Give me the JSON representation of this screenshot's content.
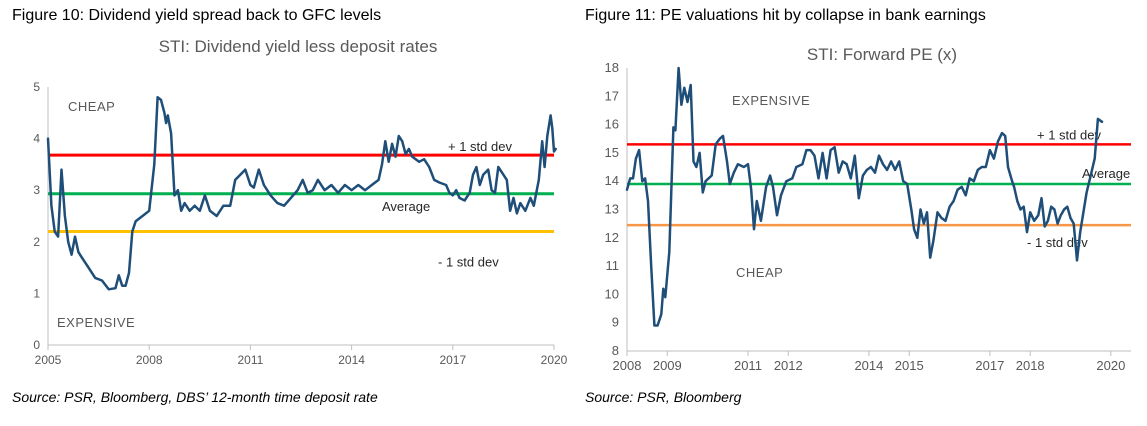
{
  "charts": [
    {
      "figure_title": "Figure 10: Dividend yield spread back to GFC levels",
      "source": "Source: PSR, Bloomberg, DBS’ 12-month time deposit rate"
    },
    {
      "figure_title": "Figure 11: PE valuations hit by collapse in bank earnings",
      "source": "Source: PSR, Bloomberg"
    }
  ],
  "colors": {
    "series": "#1f4e79",
    "upper_band_left": "#ff0000",
    "average": "#00b050",
    "lower_band_left": "#ffc000",
    "upper_band_right": "#ff0000",
    "lower_band_right": "#f79646",
    "text_gray": "#595959",
    "axis": "#bfbfbf"
  },
  "chart_data": [
    {
      "type": "line",
      "title": "STI: Dividend yield less deposit rates",
      "xlabel": "",
      "ylabel": "",
      "xlim": [
        2005,
        2020
      ],
      "ylim": [
        0,
        5
      ],
      "x_ticks": [
        "2005",
        "2008",
        "2011",
        "2014",
        "2017",
        "2020"
      ],
      "y_ticks": [
        "0",
        "1",
        "2",
        "3",
        "4",
        "5"
      ],
      "grid": false,
      "reference_lines": [
        {
          "label": "+ 1 std dev",
          "value": 3.68,
          "color": "#ff0000"
        },
        {
          "label": "Average",
          "value": 2.93,
          "color": "#00b050"
        },
        {
          "label": "- 1 std dev",
          "value": 2.2,
          "color": "#ffc000"
        }
      ],
      "annotations": [
        "CHEAP",
        "EXPENSIVE"
      ],
      "series": [
        {
          "color": "#1f4e79",
          "points": [
            [
              2005.0,
              4.0
            ],
            [
              2005.1,
              2.7
            ],
            [
              2005.2,
              2.2
            ],
            [
              2005.3,
              2.1
            ],
            [
              2005.4,
              3.4
            ],
            [
              2005.5,
              2.5
            ],
            [
              2005.6,
              2.0
            ],
            [
              2005.7,
              1.75
            ],
            [
              2005.8,
              2.1
            ],
            [
              2005.9,
              1.8
            ],
            [
              2006.0,
              1.7
            ],
            [
              2006.2,
              1.5
            ],
            [
              2006.4,
              1.3
            ],
            [
              2006.6,
              1.25
            ],
            [
              2006.8,
              1.08
            ],
            [
              2007.0,
              1.1
            ],
            [
              2007.1,
              1.35
            ],
            [
              2007.2,
              1.15
            ],
            [
              2007.3,
              1.15
            ],
            [
              2007.4,
              1.4
            ],
            [
              2007.5,
              2.2
            ],
            [
              2007.6,
              2.4
            ],
            [
              2007.8,
              2.5
            ],
            [
              2008.0,
              2.6
            ],
            [
              2008.15,
              3.5
            ],
            [
              2008.25,
              4.8
            ],
            [
              2008.35,
              4.75
            ],
            [
              2008.45,
              4.5
            ],
            [
              2008.5,
              4.3
            ],
            [
              2008.55,
              4.45
            ],
            [
              2008.65,
              4.1
            ],
            [
              2008.75,
              2.9
            ],
            [
              2008.85,
              3.0
            ],
            [
              2008.95,
              2.6
            ],
            [
              2009.05,
              2.75
            ],
            [
              2009.2,
              2.6
            ],
            [
              2009.35,
              2.7
            ],
            [
              2009.5,
              2.6
            ],
            [
              2009.65,
              2.9
            ],
            [
              2009.8,
              2.6
            ],
            [
              2010.0,
              2.5
            ],
            [
              2010.2,
              2.7
            ],
            [
              2010.4,
              2.7
            ],
            [
              2010.55,
              3.2
            ],
            [
              2010.7,
              3.3
            ],
            [
              2010.85,
              3.4
            ],
            [
              2011.0,
              3.1
            ],
            [
              2011.1,
              3.05
            ],
            [
              2011.25,
              3.4
            ],
            [
              2011.4,
              3.1
            ],
            [
              2011.6,
              2.9
            ],
            [
              2011.8,
              2.75
            ],
            [
              2012.0,
              2.7
            ],
            [
              2012.2,
              2.85
            ],
            [
              2012.4,
              3.0
            ],
            [
              2012.55,
              3.2
            ],
            [
              2012.7,
              2.95
            ],
            [
              2012.85,
              3.0
            ],
            [
              2013.0,
              3.2
            ],
            [
              2013.2,
              3.0
            ],
            [
              2013.4,
              3.1
            ],
            [
              2013.6,
              2.95
            ],
            [
              2013.8,
              3.1
            ],
            [
              2014.0,
              3.0
            ],
            [
              2014.2,
              3.1
            ],
            [
              2014.4,
              3.0
            ],
            [
              2014.6,
              3.1
            ],
            [
              2014.8,
              3.2
            ],
            [
              2014.9,
              3.5
            ],
            [
              2015.0,
              3.95
            ],
            [
              2015.1,
              3.55
            ],
            [
              2015.2,
              3.9
            ],
            [
              2015.3,
              3.65
            ],
            [
              2015.4,
              4.05
            ],
            [
              2015.5,
              3.95
            ],
            [
              2015.6,
              3.7
            ],
            [
              2015.7,
              3.8
            ],
            [
              2015.8,
              3.65
            ],
            [
              2016.0,
              3.55
            ],
            [
              2016.15,
              3.6
            ],
            [
              2016.3,
              3.45
            ],
            [
              2016.45,
              3.2
            ],
            [
              2016.6,
              3.15
            ],
            [
              2016.8,
              3.1
            ],
            [
              2016.9,
              2.95
            ],
            [
              2017.0,
              2.9
            ],
            [
              2017.1,
              3.0
            ],
            [
              2017.2,
              2.85
            ],
            [
              2017.35,
              2.8
            ],
            [
              2017.5,
              2.95
            ],
            [
              2017.6,
              3.3
            ],
            [
              2017.7,
              3.45
            ],
            [
              2017.8,
              3.1
            ],
            [
              2017.9,
              3.3
            ],
            [
              2018.05,
              3.4
            ],
            [
              2018.15,
              3.0
            ],
            [
              2018.25,
              2.95
            ],
            [
              2018.35,
              3.45
            ],
            [
              2018.5,
              3.3
            ],
            [
              2018.6,
              3.2
            ],
            [
              2018.7,
              2.6
            ],
            [
              2018.8,
              2.85
            ],
            [
              2018.9,
              2.55
            ],
            [
              2019.0,
              2.75
            ],
            [
              2019.15,
              2.6
            ],
            [
              2019.3,
              2.85
            ],
            [
              2019.4,
              2.7
            ],
            [
              2019.55,
              3.2
            ],
            [
              2019.65,
              3.95
            ],
            [
              2019.72,
              3.45
            ],
            [
              2019.8,
              4.05
            ],
            [
              2019.9,
              4.45
            ],
            [
              2019.95,
              4.2
            ],
            [
              2020.0,
              3.75
            ],
            [
              2020.05,
              3.8
            ]
          ]
        }
      ]
    },
    {
      "type": "line",
      "title": "STI: Forward PE (x)",
      "xlabel": "",
      "ylabel": "",
      "xlim": [
        2008,
        2020.5
      ],
      "ylim": [
        8,
        18
      ],
      "x_ticks": [
        "2008",
        "2009",
        "2011",
        "2012",
        "2014",
        "2015",
        "2017",
        "2018",
        "2020"
      ],
      "y_ticks": [
        "8",
        "9",
        "10",
        "11",
        "12",
        "13",
        "14",
        "15",
        "16",
        "17",
        "18"
      ],
      "grid": false,
      "reference_lines": [
        {
          "label": "+ 1 std dev",
          "value": 15.3,
          "color": "#ff0000"
        },
        {
          "label": "Average",
          "value": 13.9,
          "color": "#00b050"
        },
        {
          "label": "- 1 std dev",
          "value": 12.45,
          "color": "#f79646"
        }
      ],
      "annotations": [
        "EXPENSIVE",
        "CHEAP"
      ],
      "series": [
        {
          "color": "#1f4e79",
          "points": [
            [
              2008.0,
              13.7
            ],
            [
              2008.08,
              14.1
            ],
            [
              2008.15,
              14.1
            ],
            [
              2008.22,
              14.8
            ],
            [
              2008.3,
              15.1
            ],
            [
              2008.38,
              14.0
            ],
            [
              2008.45,
              14.1
            ],
            [
              2008.52,
              13.3
            ],
            [
              2008.6,
              11.0
            ],
            [
              2008.68,
              8.9
            ],
            [
              2008.76,
              8.9
            ],
            [
              2008.85,
              9.3
            ],
            [
              2008.9,
              10.2
            ],
            [
              2008.95,
              9.9
            ],
            [
              2009.05,
              11.5
            ],
            [
              2009.15,
              15.9
            ],
            [
              2009.2,
              15.8
            ],
            [
              2009.28,
              18.0
            ],
            [
              2009.35,
              16.7
            ],
            [
              2009.42,
              17.3
            ],
            [
              2009.5,
              16.8
            ],
            [
              2009.58,
              17.4
            ],
            [
              2009.65,
              14.7
            ],
            [
              2009.72,
              14.5
            ],
            [
              2009.8,
              15.0
            ],
            [
              2009.88,
              13.6
            ],
            [
              2009.95,
              14.0
            ],
            [
              2010.1,
              14.2
            ],
            [
              2010.2,
              15.3
            ],
            [
              2010.3,
              15.5
            ],
            [
              2010.38,
              15.6
            ],
            [
              2010.48,
              14.7
            ],
            [
              2010.55,
              13.9
            ],
            [
              2010.65,
              14.3
            ],
            [
              2010.75,
              14.6
            ],
            [
              2010.9,
              14.5
            ],
            [
              2011.0,
              14.6
            ],
            [
              2011.08,
              13.7
            ],
            [
              2011.15,
              12.3
            ],
            [
              2011.22,
              13.3
            ],
            [
              2011.32,
              12.6
            ],
            [
              2011.45,
              13.8
            ],
            [
              2011.55,
              14.2
            ],
            [
              2011.62,
              13.8
            ],
            [
              2011.72,
              12.8
            ],
            [
              2011.82,
              13.5
            ],
            [
              2011.95,
              14.0
            ],
            [
              2012.1,
              14.1
            ],
            [
              2012.2,
              14.5
            ],
            [
              2012.35,
              14.6
            ],
            [
              2012.45,
              15.1
            ],
            [
              2012.55,
              15.1
            ],
            [
              2012.65,
              14.9
            ],
            [
              2012.75,
              14.1
            ],
            [
              2012.85,
              15.0
            ],
            [
              2012.95,
              14.1
            ],
            [
              2013.05,
              15.1
            ],
            [
              2013.15,
              15.2
            ],
            [
              2013.25,
              14.3
            ],
            [
              2013.35,
              14.7
            ],
            [
              2013.45,
              14.6
            ],
            [
              2013.55,
              14.1
            ],
            [
              2013.65,
              14.9
            ],
            [
              2013.75,
              13.4
            ],
            [
              2013.85,
              14.2
            ],
            [
              2013.95,
              14.4
            ],
            [
              2014.05,
              14.5
            ],
            [
              2014.15,
              14.3
            ],
            [
              2014.25,
              14.9
            ],
            [
              2014.35,
              14.6
            ],
            [
              2014.45,
              14.4
            ],
            [
              2014.55,
              14.7
            ],
            [
              2014.65,
              14.4
            ],
            [
              2014.75,
              14.7
            ],
            [
              2014.85,
              14.0
            ],
            [
              2014.95,
              13.9
            ],
            [
              2015.05,
              13.0
            ],
            [
              2015.12,
              12.3
            ],
            [
              2015.2,
              12.0
            ],
            [
              2015.28,
              13.0
            ],
            [
              2015.36,
              12.5
            ],
            [
              2015.44,
              12.9
            ],
            [
              2015.52,
              11.3
            ],
            [
              2015.6,
              11.9
            ],
            [
              2015.7,
              12.9
            ],
            [
              2015.8,
              12.7
            ],
            [
              2015.9,
              12.6
            ],
            [
              2016.0,
              13.1
            ],
            [
              2016.1,
              13.3
            ],
            [
              2016.2,
              13.7
            ],
            [
              2016.3,
              13.8
            ],
            [
              2016.4,
              13.5
            ],
            [
              2016.5,
              14.1
            ],
            [
              2016.6,
              14.0
            ],
            [
              2016.7,
              14.4
            ],
            [
              2016.8,
              14.5
            ],
            [
              2016.9,
              14.5
            ],
            [
              2017.0,
              15.1
            ],
            [
              2017.1,
              14.8
            ],
            [
              2017.2,
              15.4
            ],
            [
              2017.3,
              15.7
            ],
            [
              2017.38,
              15.6
            ],
            [
              2017.45,
              14.5
            ],
            [
              2017.55,
              14.0
            ],
            [
              2017.6,
              13.8
            ],
            [
              2017.68,
              13.3
            ],
            [
              2017.76,
              13.0
            ],
            [
              2017.84,
              13.1
            ],
            [
              2017.92,
              12.2
            ],
            [
              2018.0,
              12.9
            ],
            [
              2018.1,
              12.6
            ],
            [
              2018.2,
              12.8
            ],
            [
              2018.28,
              13.4
            ],
            [
              2018.36,
              12.4
            ],
            [
              2018.44,
              12.6
            ],
            [
              2018.52,
              13.1
            ],
            [
              2018.6,
              13.0
            ],
            [
              2018.68,
              12.5
            ],
            [
              2018.76,
              12.8
            ],
            [
              2018.84,
              13.0
            ],
            [
              2018.92,
              13.1
            ],
            [
              2019.0,
              12.7
            ],
            [
              2019.08,
              12.5
            ],
            [
              2019.16,
              11.2
            ],
            [
              2019.24,
              12.2
            ],
            [
              2019.32,
              12.9
            ],
            [
              2019.4,
              13.6
            ],
            [
              2019.5,
              14.2
            ],
            [
              2019.6,
              14.8
            ],
            [
              2019.68,
              16.2
            ],
            [
              2019.78,
              16.1
            ]
          ]
        }
      ]
    }
  ]
}
